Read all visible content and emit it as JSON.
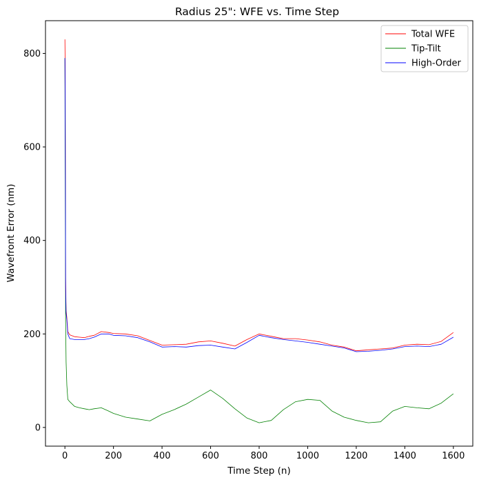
{
  "chart_data": {
    "type": "line",
    "title": "Radius 25\": WFE vs. Time Step",
    "xlabel": "Time Step (n)",
    "ylabel": "Wavefront Error (nm)",
    "xlim": [
      -80,
      1680
    ],
    "ylim": [
      -40,
      870
    ],
    "xticks": [
      0,
      200,
      400,
      600,
      800,
      1000,
      1200,
      1400,
      1600
    ],
    "yticks": [
      0,
      200,
      400,
      600,
      800
    ],
    "grid": false,
    "legend_position": "top-right",
    "series": [
      {
        "name": "Total WFE",
        "color": "#ff0000",
        "x": [
          0,
          1,
          2,
          3,
          5,
          8,
          12,
          20,
          40,
          60,
          80,
          100,
          120,
          150,
          180,
          200,
          250,
          300,
          350,
          400,
          450,
          500,
          550,
          600,
          650,
          700,
          750,
          800,
          850,
          900,
          950,
          1000,
          1050,
          1100,
          1150,
          1200,
          1250,
          1300,
          1350,
          1400,
          1450,
          1500,
          1550,
          1600
        ],
        "values": [
          830,
          780,
          560,
          320,
          250,
          235,
          205,
          198,
          194,
          193,
          192,
          195,
          197,
          205,
          203,
          201,
          200,
          196,
          186,
          176,
          177,
          178,
          183,
          185,
          180,
          174,
          188,
          200,
          195,
          190,
          190,
          187,
          183,
          176,
          172,
          164,
          166,
          168,
          170,
          176,
          178,
          177,
          184,
          203
        ]
      },
      {
        "name": "Tip-Tilt",
        "color": "#008000",
        "x": [
          0,
          1,
          2,
          3,
          5,
          8,
          12,
          20,
          40,
          60,
          80,
          100,
          120,
          150,
          180,
          200,
          250,
          300,
          350,
          400,
          450,
          500,
          550,
          600,
          650,
          700,
          750,
          800,
          850,
          900,
          950,
          1000,
          1050,
          1100,
          1150,
          1200,
          1250,
          1300,
          1350,
          1400,
          1450,
          1500,
          1550,
          1600
        ],
        "values": [
          790,
          600,
          400,
          230,
          140,
          90,
          60,
          55,
          45,
          42,
          40,
          38,
          40,
          42,
          35,
          30,
          22,
          18,
          14,
          28,
          38,
          50,
          65,
          80,
          62,
          40,
          20,
          10,
          15,
          38,
          55,
          60,
          58,
          35,
          22,
          15,
          10,
          12,
          35,
          45,
          42,
          40,
          52,
          72
        ]
      },
      {
        "name": "High-Order",
        "color": "#0000ff",
        "x": [
          0,
          1,
          2,
          3,
          5,
          8,
          12,
          20,
          40,
          60,
          80,
          100,
          120,
          150,
          180,
          200,
          250,
          300,
          350,
          400,
          450,
          500,
          550,
          600,
          650,
          700,
          750,
          800,
          850,
          900,
          950,
          1000,
          1050,
          1100,
          1150,
          1200,
          1250,
          1300,
          1350,
          1400,
          1450,
          1500,
          1550,
          1600
        ],
        "values": [
          790,
          700,
          540,
          300,
          245,
          230,
          200,
          190,
          188,
          188,
          188,
          190,
          193,
          200,
          200,
          197,
          196,
          192,
          183,
          172,
          173,
          172,
          175,
          176,
          172,
          168,
          182,
          197,
          192,
          188,
          185,
          182,
          178,
          174,
          170,
          162,
          163,
          165,
          168,
          173,
          174,
          173,
          178,
          193
        ]
      }
    ]
  }
}
